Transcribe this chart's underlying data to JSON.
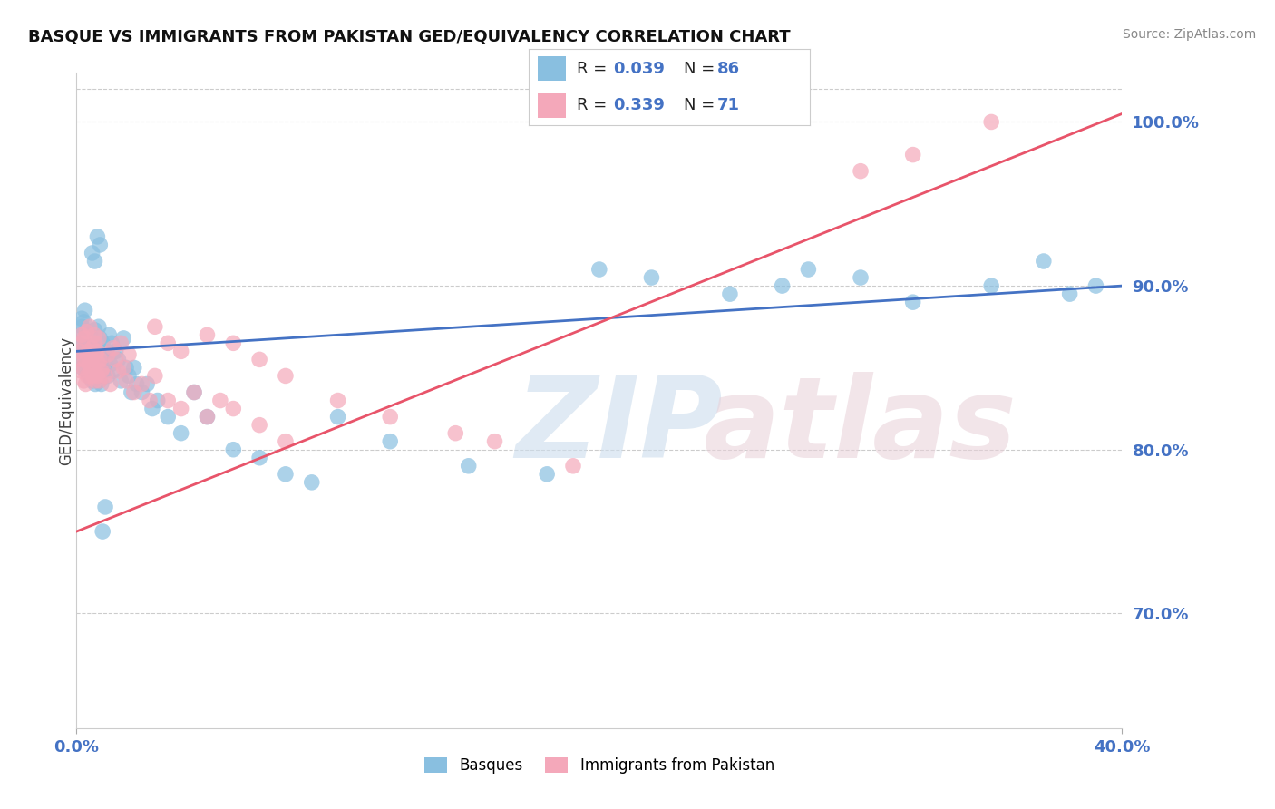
{
  "title": "BASQUE VS IMMIGRANTS FROM PAKISTAN GED/EQUIVALENCY CORRELATION CHART",
  "source": "Source: ZipAtlas.com",
  "ylabel": "GED/Equivalency",
  "legend_label_blue": "Basques",
  "legend_label_pink": "Immigrants from Pakistan",
  "x_min": 0.0,
  "x_max": 40.0,
  "y_min": 63.0,
  "y_max": 103.0,
  "yticks": [
    70.0,
    80.0,
    90.0,
    100.0
  ],
  "blue_R": 0.039,
  "blue_N": 86,
  "pink_R": 0.339,
  "pink_N": 71,
  "blue_color": "#89bfe0",
  "pink_color": "#f4a8ba",
  "blue_line_color": "#4472c4",
  "pink_line_color": "#e8546a",
  "blue_scatter_x": [
    0.15,
    0.18,
    0.2,
    0.22,
    0.22,
    0.25,
    0.28,
    0.3,
    0.32,
    0.35,
    0.38,
    0.4,
    0.42,
    0.45,
    0.48,
    0.5,
    0.52,
    0.55,
    0.58,
    0.6,
    0.62,
    0.65,
    0.68,
    0.7,
    0.72,
    0.75,
    0.78,
    0.8,
    0.82,
    0.85,
    0.88,
    0.9,
    0.92,
    0.95,
    0.98,
    1.0,
    1.05,
    1.1,
    1.15,
    1.2,
    1.25,
    1.3,
    1.35,
    1.4,
    1.5,
    1.6,
    1.7,
    1.8,
    1.9,
    2.0,
    2.1,
    2.2,
    2.3,
    2.5,
    2.7,
    2.9,
    3.1,
    3.5,
    4.0,
    4.5,
    5.0,
    6.0,
    7.0,
    8.0,
    9.0,
    10.0,
    12.0,
    15.0,
    18.0,
    20.0,
    22.0,
    25.0,
    27.0,
    28.0,
    30.0,
    32.0,
    35.0,
    37.0,
    38.0,
    39.0,
    1.0,
    1.1,
    0.6,
    0.7,
    0.8,
    0.9
  ],
  "blue_scatter_y": [
    87.0,
    86.5,
    88.0,
    87.5,
    85.0,
    86.0,
    87.8,
    85.5,
    88.5,
    86.3,
    84.8,
    87.2,
    85.8,
    86.8,
    84.5,
    85.2,
    87.0,
    86.5,
    85.0,
    84.2,
    86.0,
    85.5,
    84.8,
    87.3,
    84.0,
    85.8,
    86.2,
    84.5,
    85.0,
    87.5,
    84.2,
    86.8,
    85.3,
    84.0,
    85.8,
    86.5,
    84.8,
    85.5,
    86.0,
    84.5,
    87.0,
    85.2,
    86.5,
    84.8,
    86.0,
    85.5,
    84.2,
    86.8,
    85.0,
    84.5,
    83.5,
    85.0,
    84.0,
    83.5,
    84.0,
    82.5,
    83.0,
    82.0,
    81.0,
    83.5,
    82.0,
    80.0,
    79.5,
    78.5,
    78.0,
    82.0,
    80.5,
    79.0,
    78.5,
    91.0,
    90.5,
    89.5,
    90.0,
    91.0,
    90.5,
    89.0,
    90.0,
    91.5,
    89.5,
    90.0,
    75.0,
    76.5,
    92.0,
    91.5,
    93.0,
    92.5
  ],
  "pink_scatter_x": [
    0.12,
    0.15,
    0.18,
    0.2,
    0.22,
    0.25,
    0.28,
    0.3,
    0.32,
    0.35,
    0.38,
    0.4,
    0.42,
    0.45,
    0.48,
    0.5,
    0.52,
    0.55,
    0.58,
    0.6,
    0.62,
    0.65,
    0.68,
    0.7,
    0.72,
    0.75,
    0.78,
    0.8,
    0.82,
    0.85,
    0.88,
    0.9,
    0.95,
    1.0,
    1.1,
    1.2,
    1.3,
    1.4,
    1.5,
    1.6,
    1.7,
    1.8,
    1.9,
    2.0,
    2.2,
    2.5,
    2.8,
    3.0,
    3.5,
    4.0,
    4.5,
    5.0,
    5.5,
    6.0,
    7.0,
    8.0,
    3.0,
    3.5,
    4.0,
    5.0,
    6.0,
    7.0,
    8.0,
    10.0,
    12.0,
    14.5,
    16.0,
    19.0,
    30.0,
    32.0,
    35.0
  ],
  "pink_scatter_y": [
    86.0,
    85.5,
    84.8,
    87.0,
    86.5,
    85.0,
    84.2,
    86.8,
    85.5,
    84.0,
    87.2,
    85.8,
    84.5,
    86.0,
    85.2,
    87.5,
    86.0,
    84.8,
    85.5,
    86.2,
    84.5,
    85.0,
    87.0,
    86.5,
    84.2,
    85.8,
    86.0,
    84.5,
    85.3,
    86.8,
    84.2,
    85.5,
    84.8,
    85.0,
    84.5,
    85.8,
    84.0,
    86.2,
    85.5,
    84.8,
    86.5,
    85.0,
    84.2,
    85.8,
    83.5,
    84.0,
    83.0,
    84.5,
    83.0,
    82.5,
    83.5,
    82.0,
    83.0,
    82.5,
    81.5,
    80.5,
    87.5,
    86.5,
    86.0,
    87.0,
    86.5,
    85.5,
    84.5,
    83.0,
    82.0,
    81.0,
    80.5,
    79.0,
    97.0,
    98.0,
    100.0
  ]
}
